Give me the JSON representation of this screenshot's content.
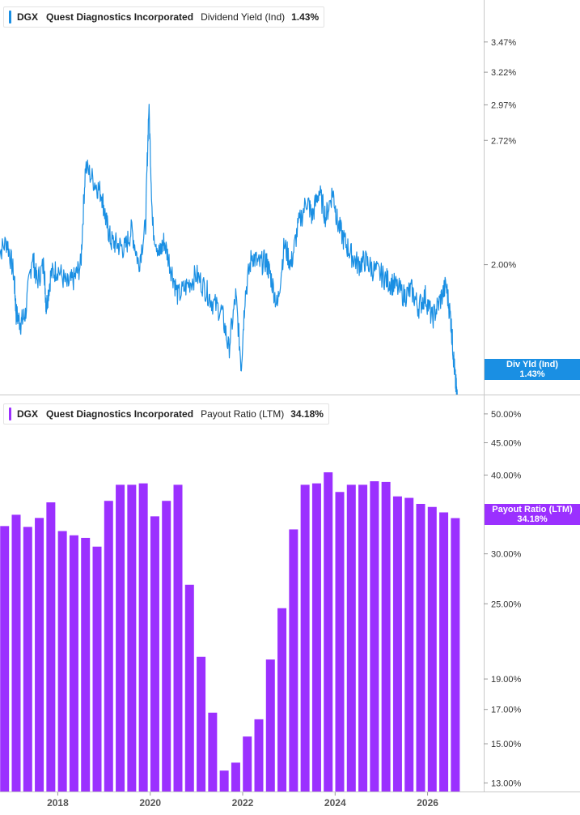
{
  "chart_data": [
    {
      "type": "line",
      "ticker": "DGX",
      "company": "Quest Diagnostics Incorporated",
      "metric": "Dividend Yield (Ind)",
      "current_value": "1.43%",
      "flag_label": "Div Yld (Ind)",
      "flag_value": "1.43%",
      "color": "#1a8fe3",
      "y_scale": "log",
      "ylim": [
        1.45,
        3.85
      ],
      "y_ticks": [
        {
          "v": 3.47,
          "label": "3.47%"
        },
        {
          "v": 3.22,
          "label": "3.22%"
        },
        {
          "v": 2.97,
          "label": "2.97%"
        },
        {
          "v": 2.72,
          "label": "2.72%"
        },
        {
          "v": 2.0,
          "label": "2.00%"
        }
      ],
      "series": [
        {
          "x": [
            2016.7,
            2016.9,
            2017.05,
            2017.1,
            2017.2,
            2017.3,
            2017.45,
            2017.55,
            2017.7,
            2017.75,
            2017.85,
            2018.0,
            2018.2,
            2018.35,
            2018.5,
            2018.6,
            2018.8,
            2018.95,
            2019.05,
            2019.15,
            2019.3,
            2019.45,
            2019.6,
            2019.75,
            2019.9,
            2019.97,
            2020.05,
            2020.2,
            2020.3,
            2020.45,
            2020.6,
            2020.8,
            2021.0,
            2021.2,
            2021.35,
            2021.55,
            2021.7,
            2021.85,
            2021.97,
            2022.05,
            2022.2,
            2022.35,
            2022.5,
            2022.6,
            2022.75,
            2022.9,
            2023.05,
            2023.2,
            2023.4,
            2023.5,
            2023.65,
            2023.8,
            2023.95,
            2024.05,
            2024.2,
            2024.35,
            2024.5,
            2024.65,
            2024.8,
            2025.0,
            2025.15,
            2025.3,
            2025.5,
            2025.65,
            2025.8,
            2025.95,
            2026.1,
            2026.25,
            2026.4,
            2026.5,
            2026.55,
            2026.6,
            2026.65
          ],
          "y": [
            2.05,
            2.12,
            1.95,
            1.77,
            1.73,
            1.77,
            2.05,
            1.92,
            2.0,
            1.8,
            1.95,
            1.98,
            1.9,
            1.93,
            2.0,
            2.55,
            2.45,
            2.38,
            2.22,
            2.12,
            2.1,
            2.08,
            2.18,
            2.0,
            2.2,
            2.95,
            2.2,
            2.05,
            2.12,
            1.98,
            1.85,
            1.9,
            1.95,
            1.88,
            1.82,
            1.78,
            1.62,
            1.85,
            1.55,
            1.85,
            2.05,
            2.0,
            2.02,
            1.95,
            1.8,
            2.1,
            2.0,
            2.2,
            2.35,
            2.25,
            2.4,
            2.25,
            2.4,
            2.22,
            2.12,
            2.05,
            2.0,
            2.02,
            1.98,
            1.95,
            1.92,
            1.9,
            1.85,
            1.88,
            1.8,
            1.85,
            1.75,
            1.82,
            1.9,
            1.75,
            1.62,
            1.5,
            1.43
          ]
        }
      ]
    },
    {
      "type": "bar",
      "ticker": "DGX",
      "company": "Quest Diagnostics Incorporated",
      "metric": "Payout Ratio (LTM)",
      "current_value": "34.18%",
      "flag_label": "Payout Ratio (LTM)",
      "flag_value": "34.18%",
      "color": "#9b30ff",
      "y_scale": "log",
      "ylim": [
        12.6,
        53.5
      ],
      "y_ticks": [
        {
          "v": 50,
          "label": "50.00%"
        },
        {
          "v": 45,
          "label": "45.00%"
        },
        {
          "v": 40,
          "label": "40.00%"
        },
        {
          "v": 30,
          "label": "30.00%"
        },
        {
          "v": 25,
          "label": "25.00%"
        },
        {
          "v": 19,
          "label": "19.00%"
        },
        {
          "v": 17,
          "label": "17.00%"
        },
        {
          "v": 15,
          "label": "15.00%"
        },
        {
          "v": 13,
          "label": "13.00%"
        }
      ],
      "series": [
        {
          "x": [
            2016.85,
            2017.1,
            2017.35,
            2017.6,
            2017.85,
            2018.1,
            2018.35,
            2018.6,
            2018.85,
            2019.1,
            2019.35,
            2019.6,
            2019.85,
            2020.1,
            2020.35,
            2020.6,
            2020.85,
            2021.1,
            2021.35,
            2021.6,
            2021.85,
            2022.1,
            2022.35,
            2022.6,
            2022.85,
            2023.1,
            2023.35,
            2023.6,
            2023.85,
            2024.1,
            2024.35,
            2024.6,
            2024.85,
            2025.1,
            2025.35,
            2025.6,
            2025.85,
            2026.1,
            2026.35,
            2026.6
          ],
          "values": [
            33.2,
            34.6,
            33.1,
            34.2,
            36.2,
            32.6,
            32.1,
            31.8,
            30.8,
            36.4,
            38.6,
            38.6,
            38.8,
            34.4,
            36.4,
            38.6,
            26.8,
            20.6,
            16.8,
            13.6,
            14.0,
            15.4,
            16.4,
            20.4,
            24.6,
            32.8,
            38.6,
            38.8,
            40.4,
            37.6,
            38.6,
            38.6,
            39.1,
            39.0,
            37.0,
            36.8,
            36.0,
            35.6,
            34.9,
            34.18
          ]
        }
      ]
    }
  ],
  "x_axis": {
    "xlim": [
      2016.75,
      2026.9
    ],
    "ticks": [
      {
        "v": 2018,
        "label": "2018"
      },
      {
        "v": 2020,
        "label": "2020"
      },
      {
        "v": 2022,
        "label": "2022"
      },
      {
        "v": 2024,
        "label": "2024"
      },
      {
        "v": 2026,
        "label": "2026"
      }
    ]
  }
}
